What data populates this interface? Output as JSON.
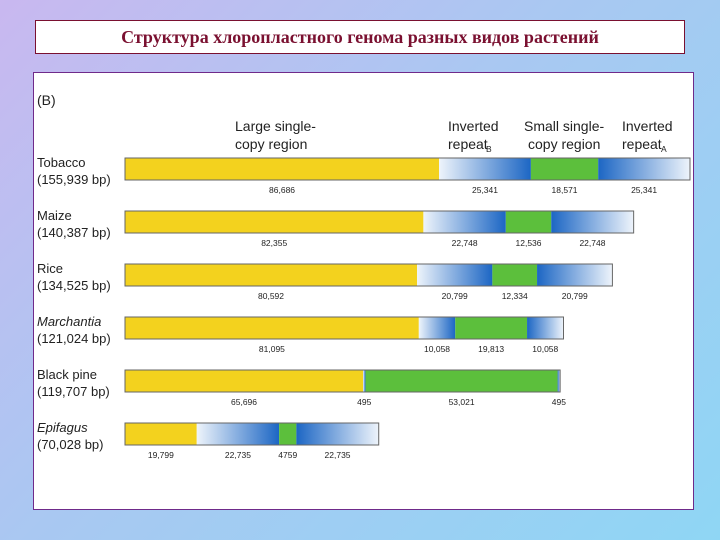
{
  "title": "Структура хлоропластного генома разных видов растений",
  "panel_label": "(B)",
  "headers": {
    "lsc": [
      "Large single-",
      "copy region"
    ],
    "irb_main": [
      "Inverted",
      "repeat"
    ],
    "irb_sub": "B",
    "ssc": [
      "Small single-",
      "copy region"
    ],
    "ira_main": [
      "Inverted",
      "repeat"
    ],
    "ira_sub": "A"
  },
  "colors": {
    "lsc": "#f3d21e",
    "ssc": "#5cbf3c",
    "ir_dark": "#1c66c4",
    "ir_light": "#eef4fb"
  },
  "species": [
    {
      "name": "Tobacco",
      "italic": false,
      "size": "(155,939 bp)",
      "lsc": 86686,
      "irb": 25341,
      "ssc": 18571,
      "ira": 25341,
      "labels": [
        "86,686",
        "25,341",
        "18,571",
        "25,341"
      ]
    },
    {
      "name": "Maize",
      "italic": false,
      "size": "(140,387 bp)",
      "lsc": 82355,
      "irb": 22748,
      "ssc": 12536,
      "ira": 22748,
      "labels": [
        "82,355",
        "22,748",
        "12,536",
        "22,748"
      ]
    },
    {
      "name": "Rice",
      "italic": false,
      "size": "(134,525 bp)",
      "lsc": 80592,
      "irb": 20799,
      "ssc": 12334,
      "ira": 20799,
      "labels": [
        "80,592",
        "20,799",
        "12,334",
        "20,799"
      ]
    },
    {
      "name": "Marchantia",
      "italic": true,
      "size": "(121,024 bp)",
      "lsc": 81095,
      "irb": 10058,
      "ssc": 19813,
      "ira": 10058,
      "labels": [
        "81,095",
        "10,058",
        "19,813",
        "10,058"
      ]
    },
    {
      "name": "Black pine",
      "italic": false,
      "size": "(119,707 bp)",
      "lsc": 65696,
      "irb": 495,
      "ssc": 53021,
      "ira": 495,
      "labels": [
        "65,696",
        "495",
        "53,021",
        "495"
      ]
    },
    {
      "name": "Epifagus",
      "italic": true,
      "size": "(70,028 bp)",
      "lsc": 19799,
      "irb": 22735,
      "ssc": 4759,
      "ira": 22735,
      "labels": [
        "19,799",
        "22,735",
        "4759",
        "22,735"
      ]
    }
  ]
}
